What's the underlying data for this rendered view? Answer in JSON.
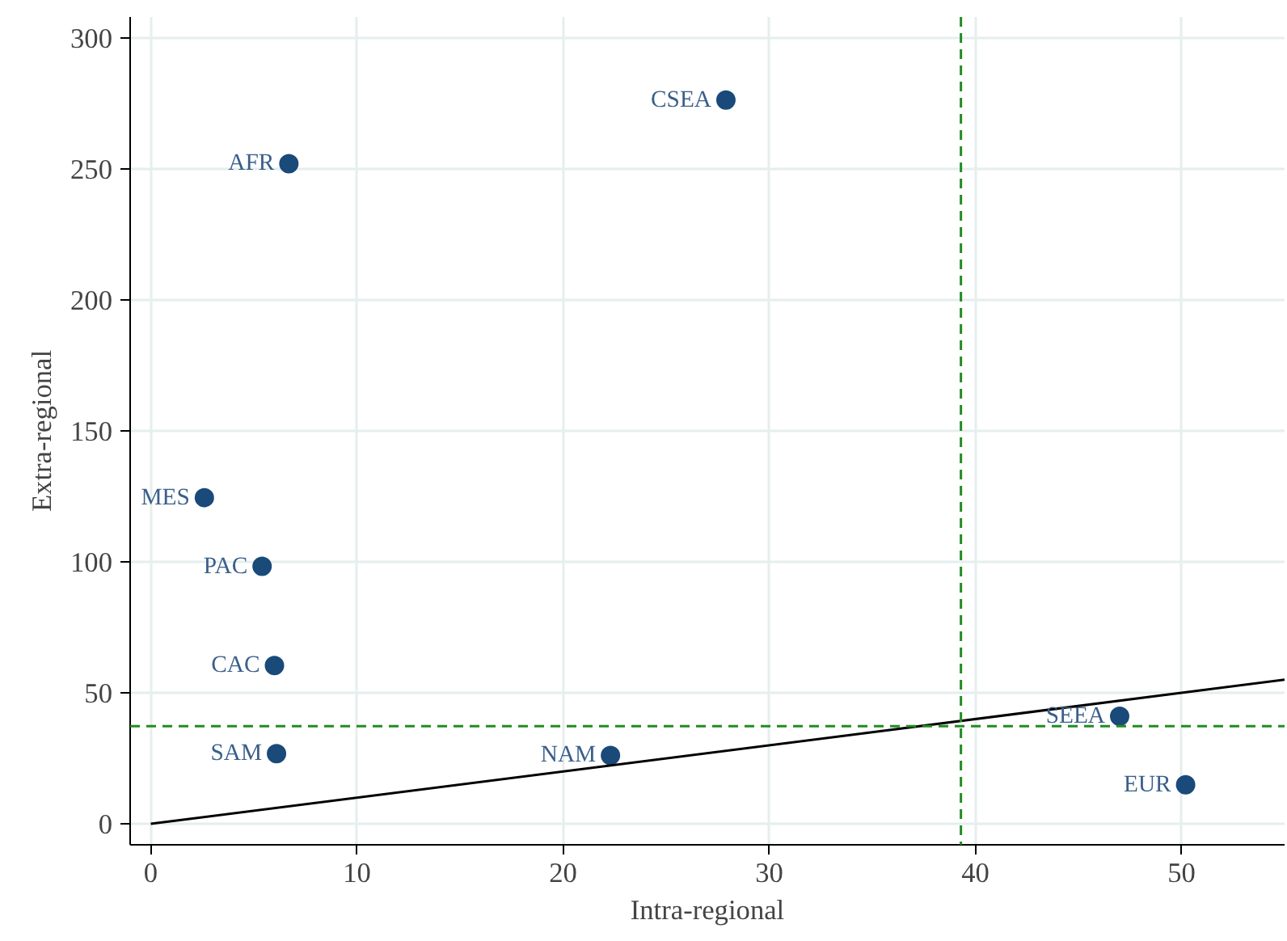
{
  "chart_data": {
    "type": "scatter",
    "xlabel": "Intra-regional",
    "ylabel": "Extra-regional",
    "xlim": [
      -1,
      55
    ],
    "ylim": [
      -8,
      308
    ],
    "xticks": [
      0,
      10,
      20,
      30,
      40,
      50
    ],
    "yticks": [
      0,
      50,
      100,
      150,
      200,
      250,
      300
    ],
    "grid": true,
    "marker": "circle",
    "series": [
      {
        "color": "#1a4a7a",
        "x": [
          27.9,
          6.7,
          2.6,
          5.4,
          6.0,
          6.1,
          22.3,
          47.0,
          50.2
        ],
        "values": [
          276.3,
          252,
          124.5,
          98.3,
          60.4,
          26.8,
          26.1,
          41.1,
          14.9
        ]
      },
      {
        "type": "line",
        "color": "#000000",
        "x": [
          0,
          55
        ],
        "values": [
          0,
          55
        ],
        "marker": "none",
        "line_style": "solid"
      }
    ],
    "annotations": [
      {
        "text": "CSEA",
        "x": 27.9,
        "y": 276.3
      },
      {
        "text": "AFR",
        "x": 6.7,
        "y": 252
      },
      {
        "text": "MES",
        "x": 2.6,
        "y": 124.5
      },
      {
        "text": "PAC",
        "x": 5.4,
        "y": 98.3
      },
      {
        "text": "CAC",
        "x": 6.0,
        "y": 60.4
      },
      {
        "text": "SAM",
        "x": 6.1,
        "y": 26.8
      },
      {
        "text": "NAM",
        "x": 22.3,
        "y": 26.1
      },
      {
        "text": "SEEA",
        "x": 47.0,
        "y": 41.1
      },
      {
        "text": "EUR",
        "x": 50.2,
        "y": 14.9
      }
    ],
    "ref_lines": [
      {
        "axis": "x",
        "value": 39.3,
        "color": "#228b22",
        "line_style": "dashed"
      },
      {
        "axis": "y",
        "value": 37.3,
        "color": "#228b22",
        "line_style": "dashed"
      }
    ]
  }
}
